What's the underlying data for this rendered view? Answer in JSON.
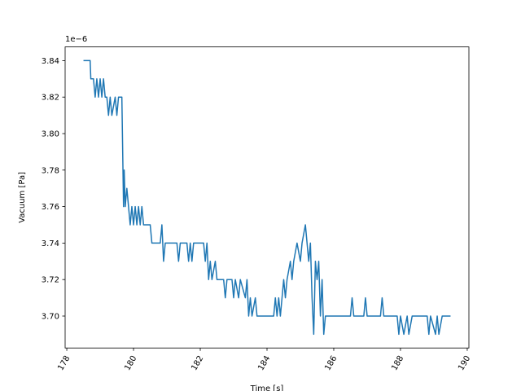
{
  "chart_data": {
    "type": "line",
    "x_label": "Time [s]",
    "y_label": "Vacuum [Pa]",
    "offset_text": "1e−6",
    "x": [
      178.5,
      178.7,
      178.72,
      178.8,
      178.85,
      178.9,
      178.95,
      179.0,
      179.05,
      179.1,
      179.15,
      179.2,
      179.25,
      179.3,
      179.35,
      179.45,
      179.5,
      179.55,
      179.65,
      179.7,
      179.72,
      179.75,
      179.8,
      179.85,
      179.9,
      179.95,
      180.0,
      180.05,
      180.1,
      180.15,
      180.2,
      180.25,
      180.3,
      180.5,
      180.55,
      180.8,
      180.85,
      180.9,
      180.95,
      181.3,
      181.35,
      181.4,
      181.6,
      181.65,
      181.7,
      181.75,
      181.8,
      182.1,
      182.15,
      182.2,
      182.25,
      182.3,
      182.35,
      182.45,
      182.5,
      182.7,
      182.75,
      182.8,
      182.95,
      183.0,
      183.05,
      183.15,
      183.2,
      183.35,
      183.4,
      183.45,
      183.5,
      183.55,
      183.65,
      183.7,
      184.2,
      184.25,
      184.3,
      184.35,
      184.4,
      184.45,
      184.5,
      184.55,
      184.6,
      184.7,
      184.75,
      184.8,
      184.9,
      185.0,
      185.05,
      185.15,
      185.25,
      185.3,
      185.35,
      185.4,
      185.45,
      185.5,
      185.55,
      185.6,
      185.65,
      185.7,
      185.75,
      186.5,
      186.55,
      186.6,
      186.9,
      186.95,
      187.0,
      187.4,
      187.45,
      187.5,
      187.9,
      187.95,
      188.0,
      188.1,
      188.2,
      188.25,
      188.35,
      188.8,
      188.85,
      188.9,
      189.05,
      189.1,
      189.15,
      189.25,
      189.5
    ],
    "series": [
      {
        "name": "Vacuum",
        "color": "#1f77b4",
        "values": [
          3.84,
          3.84,
          3.83,
          3.83,
          3.82,
          3.83,
          3.82,
          3.83,
          3.82,
          3.83,
          3.82,
          3.82,
          3.81,
          3.82,
          3.81,
          3.82,
          3.81,
          3.82,
          3.82,
          3.76,
          3.78,
          3.76,
          3.77,
          3.76,
          3.75,
          3.76,
          3.75,
          3.76,
          3.75,
          3.76,
          3.75,
          3.76,
          3.75,
          3.75,
          3.74,
          3.74,
          3.75,
          3.73,
          3.74,
          3.74,
          3.73,
          3.74,
          3.74,
          3.73,
          3.74,
          3.73,
          3.74,
          3.74,
          3.73,
          3.74,
          3.72,
          3.73,
          3.72,
          3.73,
          3.72,
          3.72,
          3.71,
          3.72,
          3.72,
          3.71,
          3.72,
          3.71,
          3.72,
          3.71,
          3.72,
          3.7,
          3.71,
          3.7,
          3.71,
          3.7,
          3.7,
          3.71,
          3.7,
          3.71,
          3.7,
          3.71,
          3.72,
          3.71,
          3.72,
          3.73,
          3.72,
          3.73,
          3.74,
          3.73,
          3.74,
          3.75,
          3.73,
          3.74,
          3.71,
          3.69,
          3.73,
          3.72,
          3.73,
          3.7,
          3.72,
          3.69,
          3.7,
          3.7,
          3.71,
          3.7,
          3.7,
          3.71,
          3.7,
          3.7,
          3.71,
          3.7,
          3.7,
          3.69,
          3.7,
          3.69,
          3.7,
          3.69,
          3.7,
          3.7,
          3.69,
          3.7,
          3.69,
          3.7,
          3.69,
          3.7,
          3.7
        ]
      }
    ],
    "xlim": [
      177.95,
      190.05
    ],
    "xticks": [
      178,
      180,
      182,
      184,
      186,
      188,
      190
    ],
    "ylim": [
      3.6825,
      3.8475
    ],
    "yticks": [
      {
        "value": 3.7,
        "label": "3.70"
      },
      3.72,
      3.74,
      3.76,
      3.78,
      {
        "value": 3.8,
        "label": "3.80"
      },
      3.82,
      3.84
    ]
  }
}
